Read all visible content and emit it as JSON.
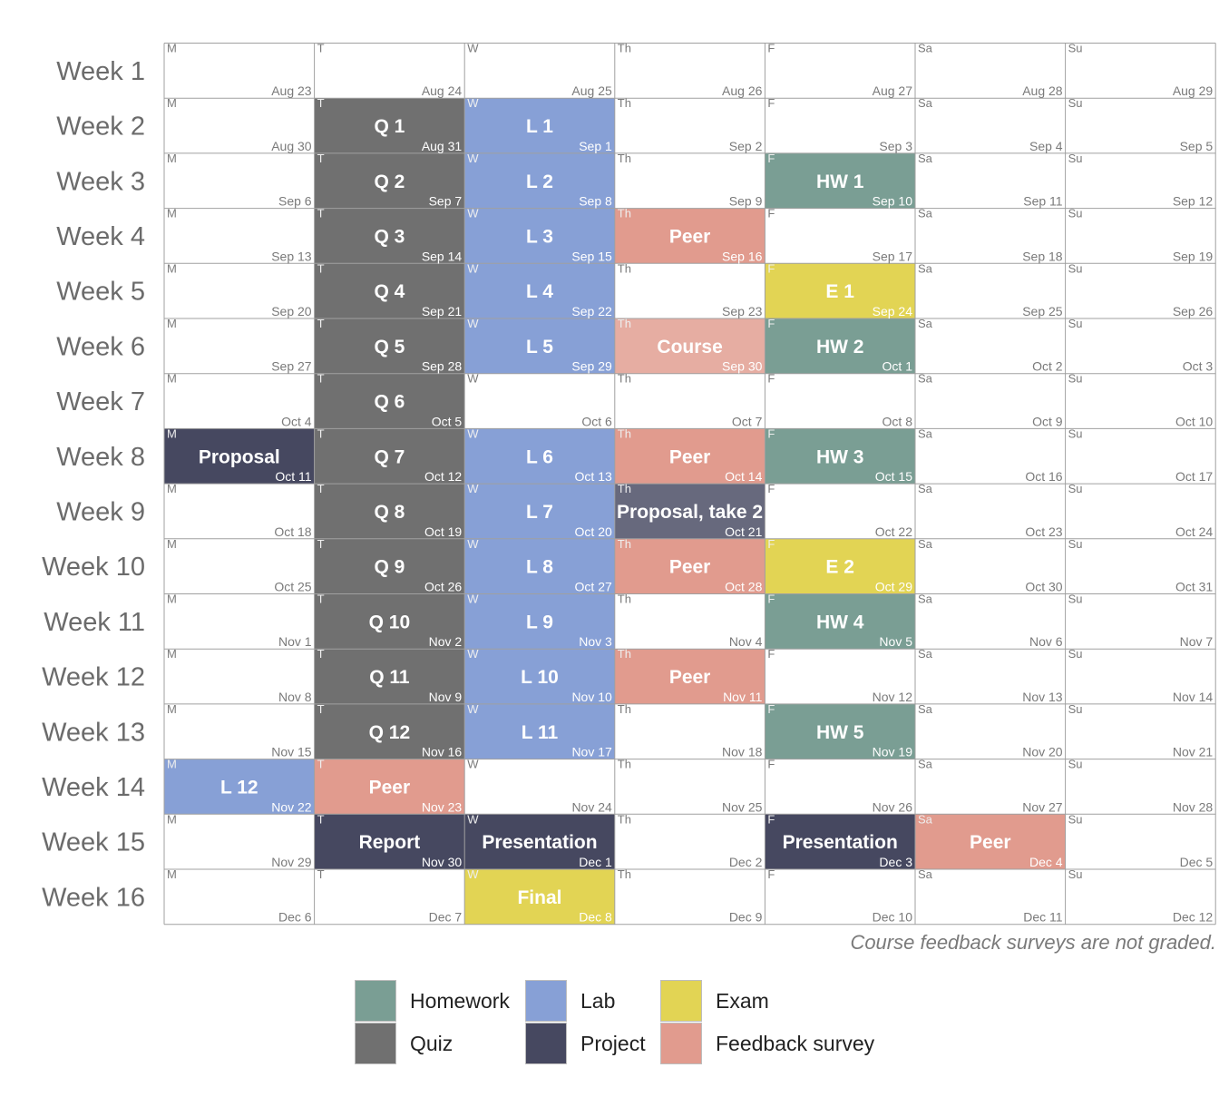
{
  "chart_data": {
    "type": "table",
    "title": "",
    "weeks": [
      "Week 1",
      "Week 2",
      "Week 3",
      "Week 4",
      "Week 5",
      "Week 6",
      "Week 7",
      "Week 8",
      "Week 9",
      "Week 10",
      "Week 11",
      "Week 12",
      "Week 13",
      "Week 14",
      "Week 15",
      "Week 16"
    ],
    "days": [
      "M",
      "T",
      "W",
      "Th",
      "F",
      "Sa",
      "Su"
    ],
    "dates": [
      [
        "Aug 23",
        "Aug 24",
        "Aug 25",
        "Aug 26",
        "Aug 27",
        "Aug 28",
        "Aug 29"
      ],
      [
        "Aug 30",
        "Aug 31",
        "Sep 1",
        "Sep 2",
        "Sep 3",
        "Sep 4",
        "Sep 5"
      ],
      [
        "Sep 6",
        "Sep 7",
        "Sep 8",
        "Sep 9",
        "Sep 10",
        "Sep 11",
        "Sep 12"
      ],
      [
        "Sep 13",
        "Sep 14",
        "Sep 15",
        "Sep 16",
        "Sep 17",
        "Sep 18",
        "Sep 19"
      ],
      [
        "Sep 20",
        "Sep 21",
        "Sep 22",
        "Sep 23",
        "Sep 24",
        "Sep 25",
        "Sep 26"
      ],
      [
        "Sep 27",
        "Sep 28",
        "Sep 29",
        "Sep 30",
        "Oct 1",
        "Oct 2",
        "Oct 3"
      ],
      [
        "Oct 4",
        "Oct 5",
        "Oct 6",
        "Oct 7",
        "Oct 8",
        "Oct 9",
        "Oct 10"
      ],
      [
        "Oct 11",
        "Oct 12",
        "Oct 13",
        "Oct 14",
        "Oct 15",
        "Oct 16",
        "Oct 17"
      ],
      [
        "Oct 18",
        "Oct 19",
        "Oct 20",
        "Oct 21",
        "Oct 22",
        "Oct 23",
        "Oct 24"
      ],
      [
        "Oct 25",
        "Oct 26",
        "Oct 27",
        "Oct 28",
        "Oct 29",
        "Oct 30",
        "Oct 31"
      ],
      [
        "Nov 1",
        "Nov 2",
        "Nov 3",
        "Nov 4",
        "Nov 5",
        "Nov 6",
        "Nov 7"
      ],
      [
        "Nov 8",
        "Nov 9",
        "Nov 10",
        "Nov 11",
        "Nov 12",
        "Nov 13",
        "Nov 14"
      ],
      [
        "Nov 15",
        "Nov 16",
        "Nov 17",
        "Nov 18",
        "Nov 19",
        "Nov 20",
        "Nov 21"
      ],
      [
        "Nov 22",
        "Nov 23",
        "Nov 24",
        "Nov 25",
        "Nov 26",
        "Nov 27",
        "Nov 28"
      ],
      [
        "Nov 29",
        "Nov 30",
        "Dec 1",
        "Dec 2",
        "Dec 3",
        "Dec 4",
        "Dec 5"
      ],
      [
        "Dec 6",
        "Dec 7",
        "Dec 8",
        "Dec 9",
        "Dec 10",
        "Dec 11",
        "Dec 12"
      ]
    ],
    "categories": {
      "Homework": "#7a9e94",
      "Quiz": "#707070",
      "Lab": "#87a0d6",
      "Project": "#464860",
      "Exam": "#e2d454",
      "Feedback survey": "#e19b8e"
    },
    "legend_order": [
      "Homework",
      "Quiz",
      "Lab",
      "Project",
      "Exam",
      "Feedback survey"
    ],
    "events": [
      {
        "week": 2,
        "day": "T",
        "label": "Q 1",
        "category": "Quiz"
      },
      {
        "week": 3,
        "day": "T",
        "label": "Q 2",
        "category": "Quiz"
      },
      {
        "week": 4,
        "day": "T",
        "label": "Q 3",
        "category": "Quiz"
      },
      {
        "week": 5,
        "day": "T",
        "label": "Q 4",
        "category": "Quiz"
      },
      {
        "week": 6,
        "day": "T",
        "label": "Q 5",
        "category": "Quiz"
      },
      {
        "week": 7,
        "day": "T",
        "label": "Q 6",
        "category": "Quiz"
      },
      {
        "week": 8,
        "day": "T",
        "label": "Q 7",
        "category": "Quiz"
      },
      {
        "week": 9,
        "day": "T",
        "label": "Q 8",
        "category": "Quiz"
      },
      {
        "week": 10,
        "day": "T",
        "label": "Q 9",
        "category": "Quiz"
      },
      {
        "week": 11,
        "day": "T",
        "label": "Q 10",
        "category": "Quiz"
      },
      {
        "week": 12,
        "day": "T",
        "label": "Q 11",
        "category": "Quiz"
      },
      {
        "week": 13,
        "day": "T",
        "label": "Q 12",
        "category": "Quiz"
      },
      {
        "week": 2,
        "day": "W",
        "label": "L 1",
        "category": "Lab"
      },
      {
        "week": 3,
        "day": "W",
        "label": "L 2",
        "category": "Lab"
      },
      {
        "week": 4,
        "day": "W",
        "label": "L 3",
        "category": "Lab"
      },
      {
        "week": 5,
        "day": "W",
        "label": "L 4",
        "category": "Lab"
      },
      {
        "week": 6,
        "day": "W",
        "label": "L 5",
        "category": "Lab"
      },
      {
        "week": 8,
        "day": "W",
        "label": "L 6",
        "category": "Lab"
      },
      {
        "week": 9,
        "day": "W",
        "label": "L 7",
        "category": "Lab"
      },
      {
        "week": 10,
        "day": "W",
        "label": "L 8",
        "category": "Lab"
      },
      {
        "week": 11,
        "day": "W",
        "label": "L 9",
        "category": "Lab"
      },
      {
        "week": 12,
        "day": "W",
        "label": "L 10",
        "category": "Lab"
      },
      {
        "week": 13,
        "day": "W",
        "label": "L 11",
        "category": "Lab"
      },
      {
        "week": 14,
        "day": "M",
        "label": "L 12",
        "category": "Lab"
      },
      {
        "week": 3,
        "day": "F",
        "label": "HW 1",
        "category": "Homework"
      },
      {
        "week": 6,
        "day": "F",
        "label": "HW 2",
        "category": "Homework"
      },
      {
        "week": 8,
        "day": "F",
        "label": "HW 3",
        "category": "Homework"
      },
      {
        "week": 11,
        "day": "F",
        "label": "HW 4",
        "category": "Homework"
      },
      {
        "week": 13,
        "day": "F",
        "label": "HW 5",
        "category": "Homework"
      },
      {
        "week": 5,
        "day": "F",
        "label": "E 1",
        "category": "Exam"
      },
      {
        "week": 10,
        "day": "F",
        "label": "E 2",
        "category": "Exam"
      },
      {
        "week": 16,
        "day": "W",
        "label": "Final",
        "category": "Exam"
      },
      {
        "week": 4,
        "day": "Th",
        "label": "Peer",
        "category": "Feedback survey"
      },
      {
        "week": 6,
        "day": "Th",
        "label": "Course",
        "category": "Feedback survey",
        "faded": true
      },
      {
        "week": 8,
        "day": "Th",
        "label": "Peer",
        "category": "Feedback survey"
      },
      {
        "week": 10,
        "day": "Th",
        "label": "Peer",
        "category": "Feedback survey"
      },
      {
        "week": 12,
        "day": "Th",
        "label": "Peer",
        "category": "Feedback survey"
      },
      {
        "week": 14,
        "day": "T",
        "label": "Peer",
        "category": "Feedback survey"
      },
      {
        "week": 15,
        "day": "Sa",
        "label": "Peer",
        "category": "Feedback survey"
      },
      {
        "week": 8,
        "day": "M",
        "label": "Proposal",
        "category": "Project"
      },
      {
        "week": 9,
        "day": "Th",
        "label": "Proposal, take 2",
        "category": "Project",
        "faded": true
      },
      {
        "week": 15,
        "day": "T",
        "label": "Report",
        "category": "Project"
      },
      {
        "week": 15,
        "day": "W",
        "label": "Presentation",
        "category": "Project"
      },
      {
        "week": 15,
        "day": "F",
        "label": "Presentation",
        "category": "Project"
      }
    ],
    "annotations": [
      "Course feedback surveys are not graded."
    ]
  },
  "caption": "Course feedback surveys are not graded.",
  "legend": [
    {
      "label": "Homework",
      "color": "#7a9e94"
    },
    {
      "label": "Quiz",
      "color": "#707070"
    },
    {
      "label": "Lab",
      "color": "#87a0d6"
    },
    {
      "label": "Project",
      "color": "#464860"
    },
    {
      "label": "Exam",
      "color": "#e2d454"
    },
    {
      "label": "Feedback survey",
      "color": "#e19b8e"
    }
  ]
}
